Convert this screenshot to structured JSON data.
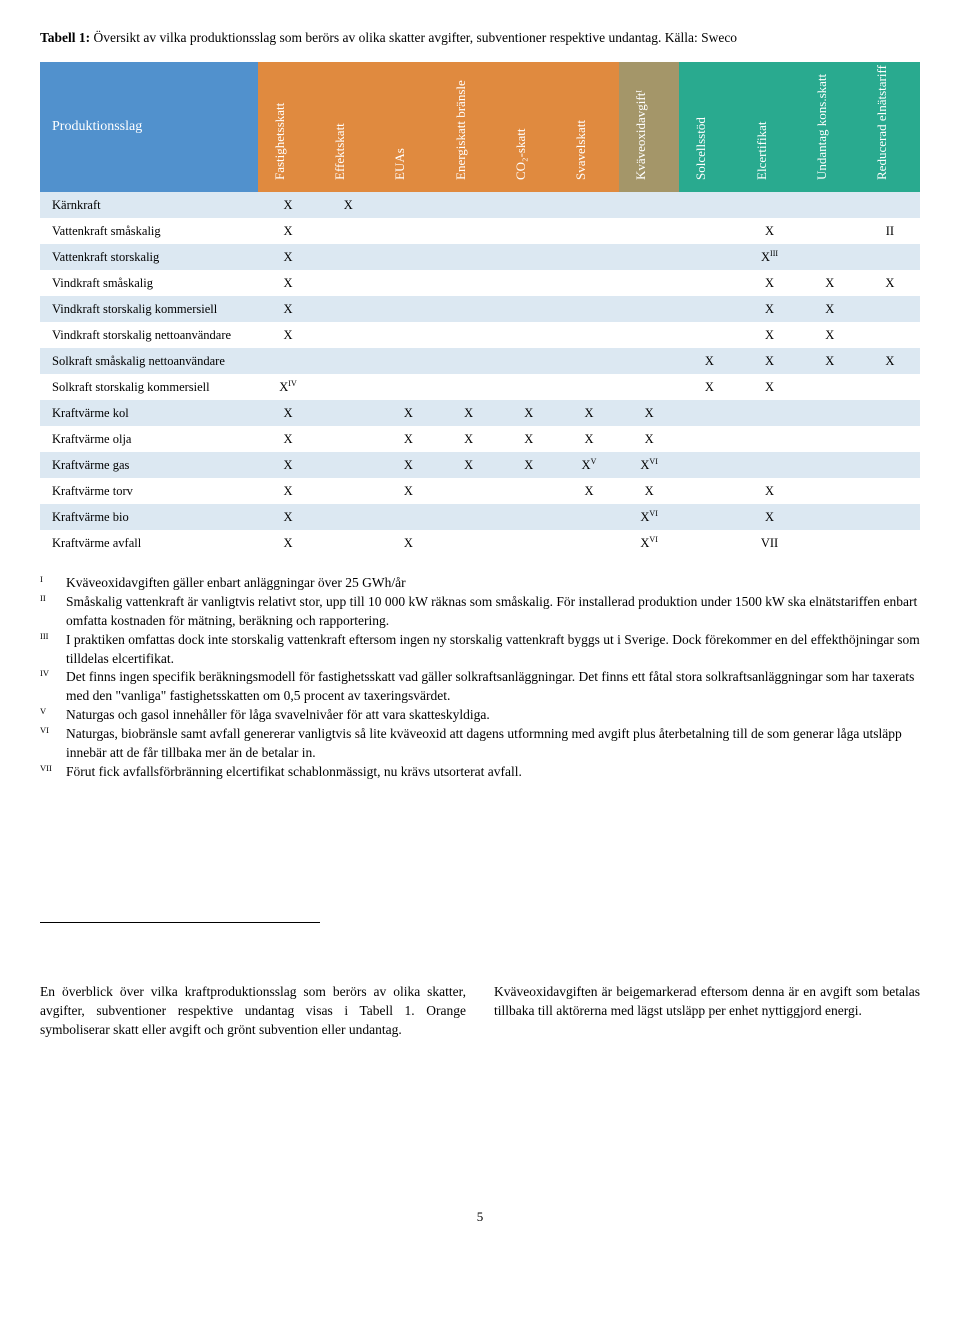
{
  "title_bold": "Tabell 1:",
  "title_rest": " Översikt av vilka produktionsslag som berörs av olika skatter avgifter, subventioner respektive undantag. Källa: Sweco",
  "row_header": "Produktionsslag",
  "columns": [
    {
      "label": "Fastighetsskatt",
      "bg": "#e08a3f"
    },
    {
      "label": "Effektskatt",
      "bg": "#e08a3f"
    },
    {
      "label": "EUAs",
      "bg": "#e08a3f"
    },
    {
      "label": "Energiskatt bränsle",
      "bg": "#e08a3f"
    },
    {
      "label": "CO₂-skatt",
      "bg": "#e08a3f"
    },
    {
      "label": "Svavelskatt",
      "bg": "#e08a3f"
    },
    {
      "label": "Kväveoxidavgiftᴵ",
      "bg": "#a49669"
    },
    {
      "label": "Solcellsstöd",
      "bg": "#29aa8f"
    },
    {
      "label": "Elcertifikat",
      "bg": "#29aa8f"
    },
    {
      "label": "Undantag kons.skatt",
      "bg": "#29aa8f"
    },
    {
      "label": "Reducerad elnätstariff",
      "bg": "#29aa8f"
    }
  ],
  "rows": [
    {
      "name": "Kärnkraft",
      "cells": [
        "X",
        "X",
        "",
        "",
        "",
        "",
        "",
        "",
        "",
        "",
        ""
      ]
    },
    {
      "name": "Vattenkraft småskalig",
      "cells": [
        "X",
        "",
        "",
        "",
        "",
        "",
        "",
        "",
        "X",
        "",
        "II"
      ]
    },
    {
      "name": "Vattenkraft storskalig",
      "cells": [
        "X",
        "",
        "",
        "",
        "",
        "",
        "",
        "",
        "X<sup class='sup'>III</sup>",
        "",
        ""
      ]
    },
    {
      "name": "Vindkraft småskalig",
      "cells": [
        "X",
        "",
        "",
        "",
        "",
        "",
        "",
        "",
        "X",
        "X",
        "X"
      ]
    },
    {
      "name": "Vindkraft storskalig kommersiell",
      "cells": [
        "X",
        "",
        "",
        "",
        "",
        "",
        "",
        "",
        "X",
        "X",
        ""
      ]
    },
    {
      "name": "Vindkraft storskalig nettoanvändare",
      "cells": [
        "X",
        "",
        "",
        "",
        "",
        "",
        "",
        "",
        "X",
        "X",
        ""
      ]
    },
    {
      "name": "Solkraft småskalig nettoanvändare",
      "cells": [
        "",
        "",
        "",
        "",
        "",
        "",
        "",
        "X",
        "X",
        "X",
        "X"
      ]
    },
    {
      "name": "Solkraft storskalig kommersiell",
      "cells": [
        "X<sup class='sup'>IV</sup>",
        "",
        "",
        "",
        "",
        "",
        "",
        "X",
        "X",
        "",
        ""
      ]
    },
    {
      "name": "Kraftvärme kol",
      "cells": [
        "X",
        "",
        "X",
        "X",
        "X",
        "X",
        "X",
        "",
        "",
        "",
        ""
      ]
    },
    {
      "name": "Kraftvärme olja",
      "cells": [
        "X",
        "",
        "X",
        "X",
        "X",
        "X",
        "X",
        "",
        "",
        "",
        ""
      ]
    },
    {
      "name": "Kraftvärme gas",
      "cells": [
        "X",
        "",
        "X",
        "X",
        "X",
        "X<sup class='sup'>V</sup>",
        "X<sup class='sup'>VI</sup>",
        "",
        "",
        "",
        ""
      ]
    },
    {
      "name": "Kraftvärme torv",
      "cells": [
        "X",
        "",
        "X",
        "",
        "",
        "X",
        "X",
        "",
        "X",
        "",
        ""
      ]
    },
    {
      "name": "Kraftvärme bio",
      "cells": [
        "X",
        "",
        "",
        "",
        "",
        "",
        "X<sup class='sup'>VI</sup>",
        "",
        "X",
        "",
        ""
      ]
    },
    {
      "name": "Kraftvärme avfall",
      "cells": [
        "X",
        "",
        "X",
        "",
        "",
        "",
        "X<sup class='sup'>VI</sup>",
        "",
        "VII",
        "",
        ""
      ]
    }
  ],
  "footnotes": [
    {
      "n": "I",
      "t": "Kväveoxidavgiften gäller enbart anläggningar över 25 GWh/år"
    },
    {
      "n": "II",
      "t": "Småskalig vattenkraft är vanligtvis relativt stor, upp till 10 000 kW räknas som småskalig. För installerad produktion under 1500 kW ska elnätstariffen enbart omfatta kostnaden för mätning, beräkning och rapportering."
    },
    {
      "n": "III",
      "t": "I praktiken omfattas dock inte storskalig vattenkraft eftersom ingen ny storskalig vattenkraft byggs ut i Sverige. Dock förekommer en del effekthöjningar som tilldelas elcertifikat."
    },
    {
      "n": "IV",
      "t": "Det finns ingen specifik beräkningsmodell för fastighetsskatt vad gäller solkraftsanläggningar. Det finns ett fåtal stora solkraftsanläggningar som har taxerats med den \"vanliga\" fastighetsskatten om 0,5 procent av taxeringsvärdet."
    },
    {
      "n": "V",
      "t": "Naturgas och gasol innehåller för låga svavelnivåer för att vara skatteskyldiga."
    },
    {
      "n": "VI",
      "t": "Naturgas, biobränsle samt avfall genererar vanligtvis så lite kväveoxid att dagens utformning med avgift plus återbetalning till de som generar låga utsläpp innebär att de får tillbaka mer än de betalar in."
    },
    {
      "n": "VII",
      "t": "Förut fick avfallsförbränning elcertifikat schablonmässigt, nu krävs utsorterat avfall."
    }
  ],
  "left_para": "En överblick över vilka kraftproduktionsslag som berörs av olika skatter, avgifter, subventioner respektive undantag visas i Tabell 1. Orange symboliserar skatt eller avgift och grönt subvention eller undantag.",
  "right_para": "Kväveoxidavgiften är beigemarkerad eftersom denna är en avgift som betalas tillbaka till aktörerna med lägst utsläpp per enhet nyttiggjord energi.",
  "page_number": "5"
}
